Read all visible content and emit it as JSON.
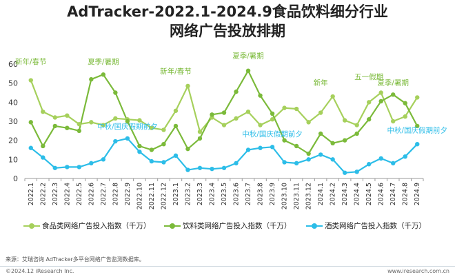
{
  "title_line1": "AdTracker-2022.1-2024.9食品饮料细分行业",
  "title_line2": "网络广告投放排期",
  "source": "来源：艾瑞咨询 AdTracker多平台网络广告监测数据库。",
  "copyright": "©2024.12 iResearch Inc.",
  "website": "www.iresearch.com.cn",
  "legend": [
    {
      "label": "食品类网络广告投入指数（千万）",
      "color": "#a6d05c"
    },
    {
      "label": "饮料类网络广告投入指数（千万）",
      "color": "#7bba3a"
    },
    {
      "label": "酒类网络广告投入指数（千万）",
      "color": "#2cbde8"
    }
  ],
  "annotations": [
    {
      "text": "新年/春节",
      "color": "#7bba3a",
      "cat": 0,
      "y": 60
    },
    {
      "text": "夏季/暑期",
      "color": "#7bba3a",
      "cat": 6,
      "y": 60
    },
    {
      "text": "新年/春节",
      "color": "#7bba3a",
      "cat": 12,
      "y": 55
    },
    {
      "text": "夏季/暑期",
      "color": "#7bba3a",
      "cat": 18,
      "y": 63
    },
    {
      "text": "新年",
      "color": "#7bba3a",
      "cat": 24,
      "y": 49
    },
    {
      "text": "五一假期",
      "color": "#7bba3a",
      "cat": 28,
      "y": 52
    },
    {
      "text": "夏季/暑期",
      "color": "#7bba3a",
      "cat": 30,
      "y": 49
    },
    {
      "text": "中秋/国庆假期前夕",
      "color": "#2cbde8",
      "cat": 8,
      "y": 26
    },
    {
      "text": "中秋/国庆假期前夕",
      "color": "#2cbde8",
      "cat": 20,
      "y": 22
    },
    {
      "text": "中秋/国庆假期前夕",
      "color": "#2cbde8",
      "cat": 32,
      "y": 24
    }
  ],
  "chart_data": {
    "type": "line",
    "categories": [
      "2022.1",
      "2022.2",
      "2022.3",
      "2022.4",
      "2022.5",
      "2022.6",
      "2022.7",
      "2022.8",
      "2022.9",
      "2022.10",
      "2022.11",
      "2022.12",
      "2023.1",
      "2023.2",
      "2023.3",
      "2023.4",
      "2023.5",
      "2023.6",
      "2023.7",
      "2023.8",
      "2023.9",
      "2023.10",
      "2023.11",
      "2023.12",
      "2024.1",
      "2024.2",
      "2024.3",
      "2024.4",
      "2024.5",
      "2024.6",
      "2024.7",
      "2024.8",
      "2024.9"
    ],
    "ylim": [
      0,
      60
    ],
    "yticks": [
      0,
      10,
      20,
      30,
      40,
      50,
      60
    ],
    "grid": false,
    "legend_position": "bottom",
    "series": [
      {
        "name": "食品类网络广告投入指数（千万）",
        "color": "#a6d05c",
        "values": [
          51.5,
          35,
          32,
          33,
          28.5,
          29.5,
          28,
          31.5,
          31,
          30.5,
          26.5,
          25.5,
          35.5,
          48.5,
          24.5,
          32,
          28,
          31.5,
          35,
          28,
          31,
          37,
          36.5,
          29.5,
          34.5,
          43,
          30.5,
          28,
          40,
          45,
          30,
          32.5,
          42.5
        ]
      },
      {
        "name": "饮料类网络广告投入指数（千万）",
        "color": "#7bba3a",
        "values": [
          29.5,
          17,
          27.5,
          26.5,
          25,
          52,
          54.5,
          45,
          30,
          17,
          15,
          18,
          27.5,
          15.5,
          21,
          33.5,
          34.5,
          45.5,
          56.5,
          43.5,
          34,
          20,
          17,
          13,
          23.5,
          18.5,
          20,
          23.5,
          31,
          40.5,
          44,
          39.5,
          27.5
        ]
      },
      {
        "name": "酒类网络广告投入指数（千万）",
        "color": "#2cbde8",
        "values": [
          16,
          11,
          5.5,
          6,
          6,
          8,
          10,
          19.5,
          21,
          14,
          9,
          8.5,
          12,
          4.5,
          5.5,
          5,
          5.5,
          8,
          15,
          16,
          16.5,
          8.5,
          8,
          10,
          12.5,
          10,
          3,
          3.5,
          7.5,
          10.5,
          8,
          11.5,
          18
        ]
      }
    ]
  }
}
